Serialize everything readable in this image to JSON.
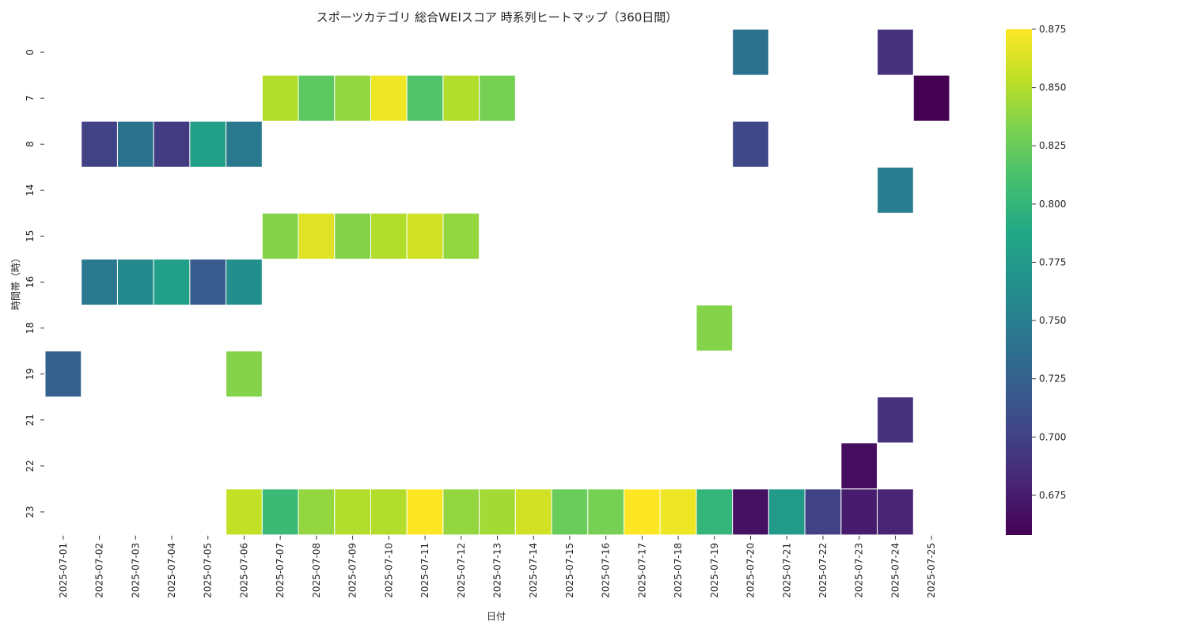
{
  "chart_data": {
    "type": "heatmap",
    "title": "スポーツカテゴリ 総合WEIスコア 時系列ヒートマップ（360日間）",
    "xlabel": "日付",
    "ylabel": "時間帯（時）",
    "x_categories": [
      "2025-07-01",
      "2025-07-02",
      "2025-07-03",
      "2025-07-04",
      "2025-07-05",
      "2025-07-06",
      "2025-07-07",
      "2025-07-08",
      "2025-07-09",
      "2025-07-10",
      "2025-07-11",
      "2025-07-12",
      "2025-07-13",
      "2025-07-14",
      "2025-07-15",
      "2025-07-16",
      "2025-07-17",
      "2025-07-18",
      "2025-07-19",
      "2025-07-20",
      "2025-07-21",
      "2025-07-22",
      "2025-07-23",
      "2025-07-24",
      "2025-07-25"
    ],
    "y_categories": [
      "0",
      "7",
      "8",
      "14",
      "15",
      "16",
      "18",
      "19",
      "21",
      "22",
      "23"
    ],
    "values": [
      [
        null,
        null,
        null,
        null,
        null,
        null,
        null,
        null,
        null,
        null,
        null,
        null,
        null,
        null,
        null,
        null,
        null,
        null,
        null,
        0.74,
        null,
        null,
        null,
        0.69,
        null
      ],
      [
        null,
        null,
        null,
        null,
        null,
        null,
        0.85,
        0.82,
        0.84,
        0.87,
        0.815,
        0.85,
        0.83,
        null,
        null,
        null,
        null,
        null,
        null,
        null,
        null,
        null,
        null,
        null,
        0.658
      ],
      [
        null,
        0.7,
        0.74,
        0.695,
        0.78,
        0.745,
        null,
        null,
        null,
        null,
        null,
        null,
        null,
        null,
        null,
        null,
        null,
        null,
        null,
        0.705,
        null,
        null,
        null,
        null,
        null
      ],
      [
        null,
        null,
        null,
        null,
        null,
        null,
        null,
        null,
        null,
        null,
        null,
        null,
        null,
        null,
        null,
        null,
        null,
        null,
        null,
        null,
        null,
        null,
        null,
        0.75,
        null
      ],
      [
        null,
        null,
        null,
        null,
        null,
        null,
        0.835,
        0.865,
        0.835,
        0.85,
        0.86,
        0.84,
        null,
        null,
        null,
        null,
        null,
        null,
        null,
        null,
        null,
        null,
        null,
        null,
        null
      ],
      [
        null,
        0.745,
        0.76,
        0.78,
        0.72,
        0.765,
        null,
        null,
        null,
        null,
        null,
        null,
        null,
        null,
        null,
        null,
        null,
        null,
        null,
        null,
        null,
        null,
        null,
        null,
        null
      ],
      [
        null,
        null,
        null,
        null,
        null,
        null,
        null,
        null,
        null,
        null,
        null,
        null,
        null,
        null,
        null,
        null,
        null,
        null,
        0.835,
        null,
        null,
        null,
        null,
        null,
        null
      ],
      [
        0.725,
        null,
        null,
        null,
        null,
        0.835,
        null,
        null,
        null,
        null,
        null,
        null,
        null,
        null,
        null,
        null,
        null,
        null,
        null,
        null,
        null,
        null,
        null,
        null,
        null
      ],
      [
        null,
        null,
        null,
        null,
        null,
        null,
        null,
        null,
        null,
        null,
        null,
        null,
        null,
        null,
        null,
        null,
        null,
        null,
        null,
        null,
        null,
        null,
        null,
        0.69,
        null
      ],
      [
        null,
        null,
        null,
        null,
        null,
        null,
        null,
        null,
        null,
        null,
        null,
        null,
        null,
        null,
        null,
        null,
        null,
        null,
        null,
        null,
        null,
        null,
        0.665,
        null,
        null
      ],
      [
        null,
        null,
        null,
        null,
        null,
        0.855,
        0.805,
        0.84,
        0.85,
        0.85,
        0.875,
        0.84,
        0.845,
        0.86,
        0.825,
        0.83,
        0.875,
        0.87,
        0.8,
        0.668,
        0.775,
        0.7,
        0.675,
        0.68,
        null
      ]
    ],
    "colorscale": "viridis",
    "colorbar_range": [
      0.658,
      0.875
    ],
    "colorbar_ticks": [
      "0.675",
      "0.700",
      "0.725",
      "0.750",
      "0.775",
      "0.800",
      "0.825",
      "0.850",
      "0.875"
    ]
  }
}
